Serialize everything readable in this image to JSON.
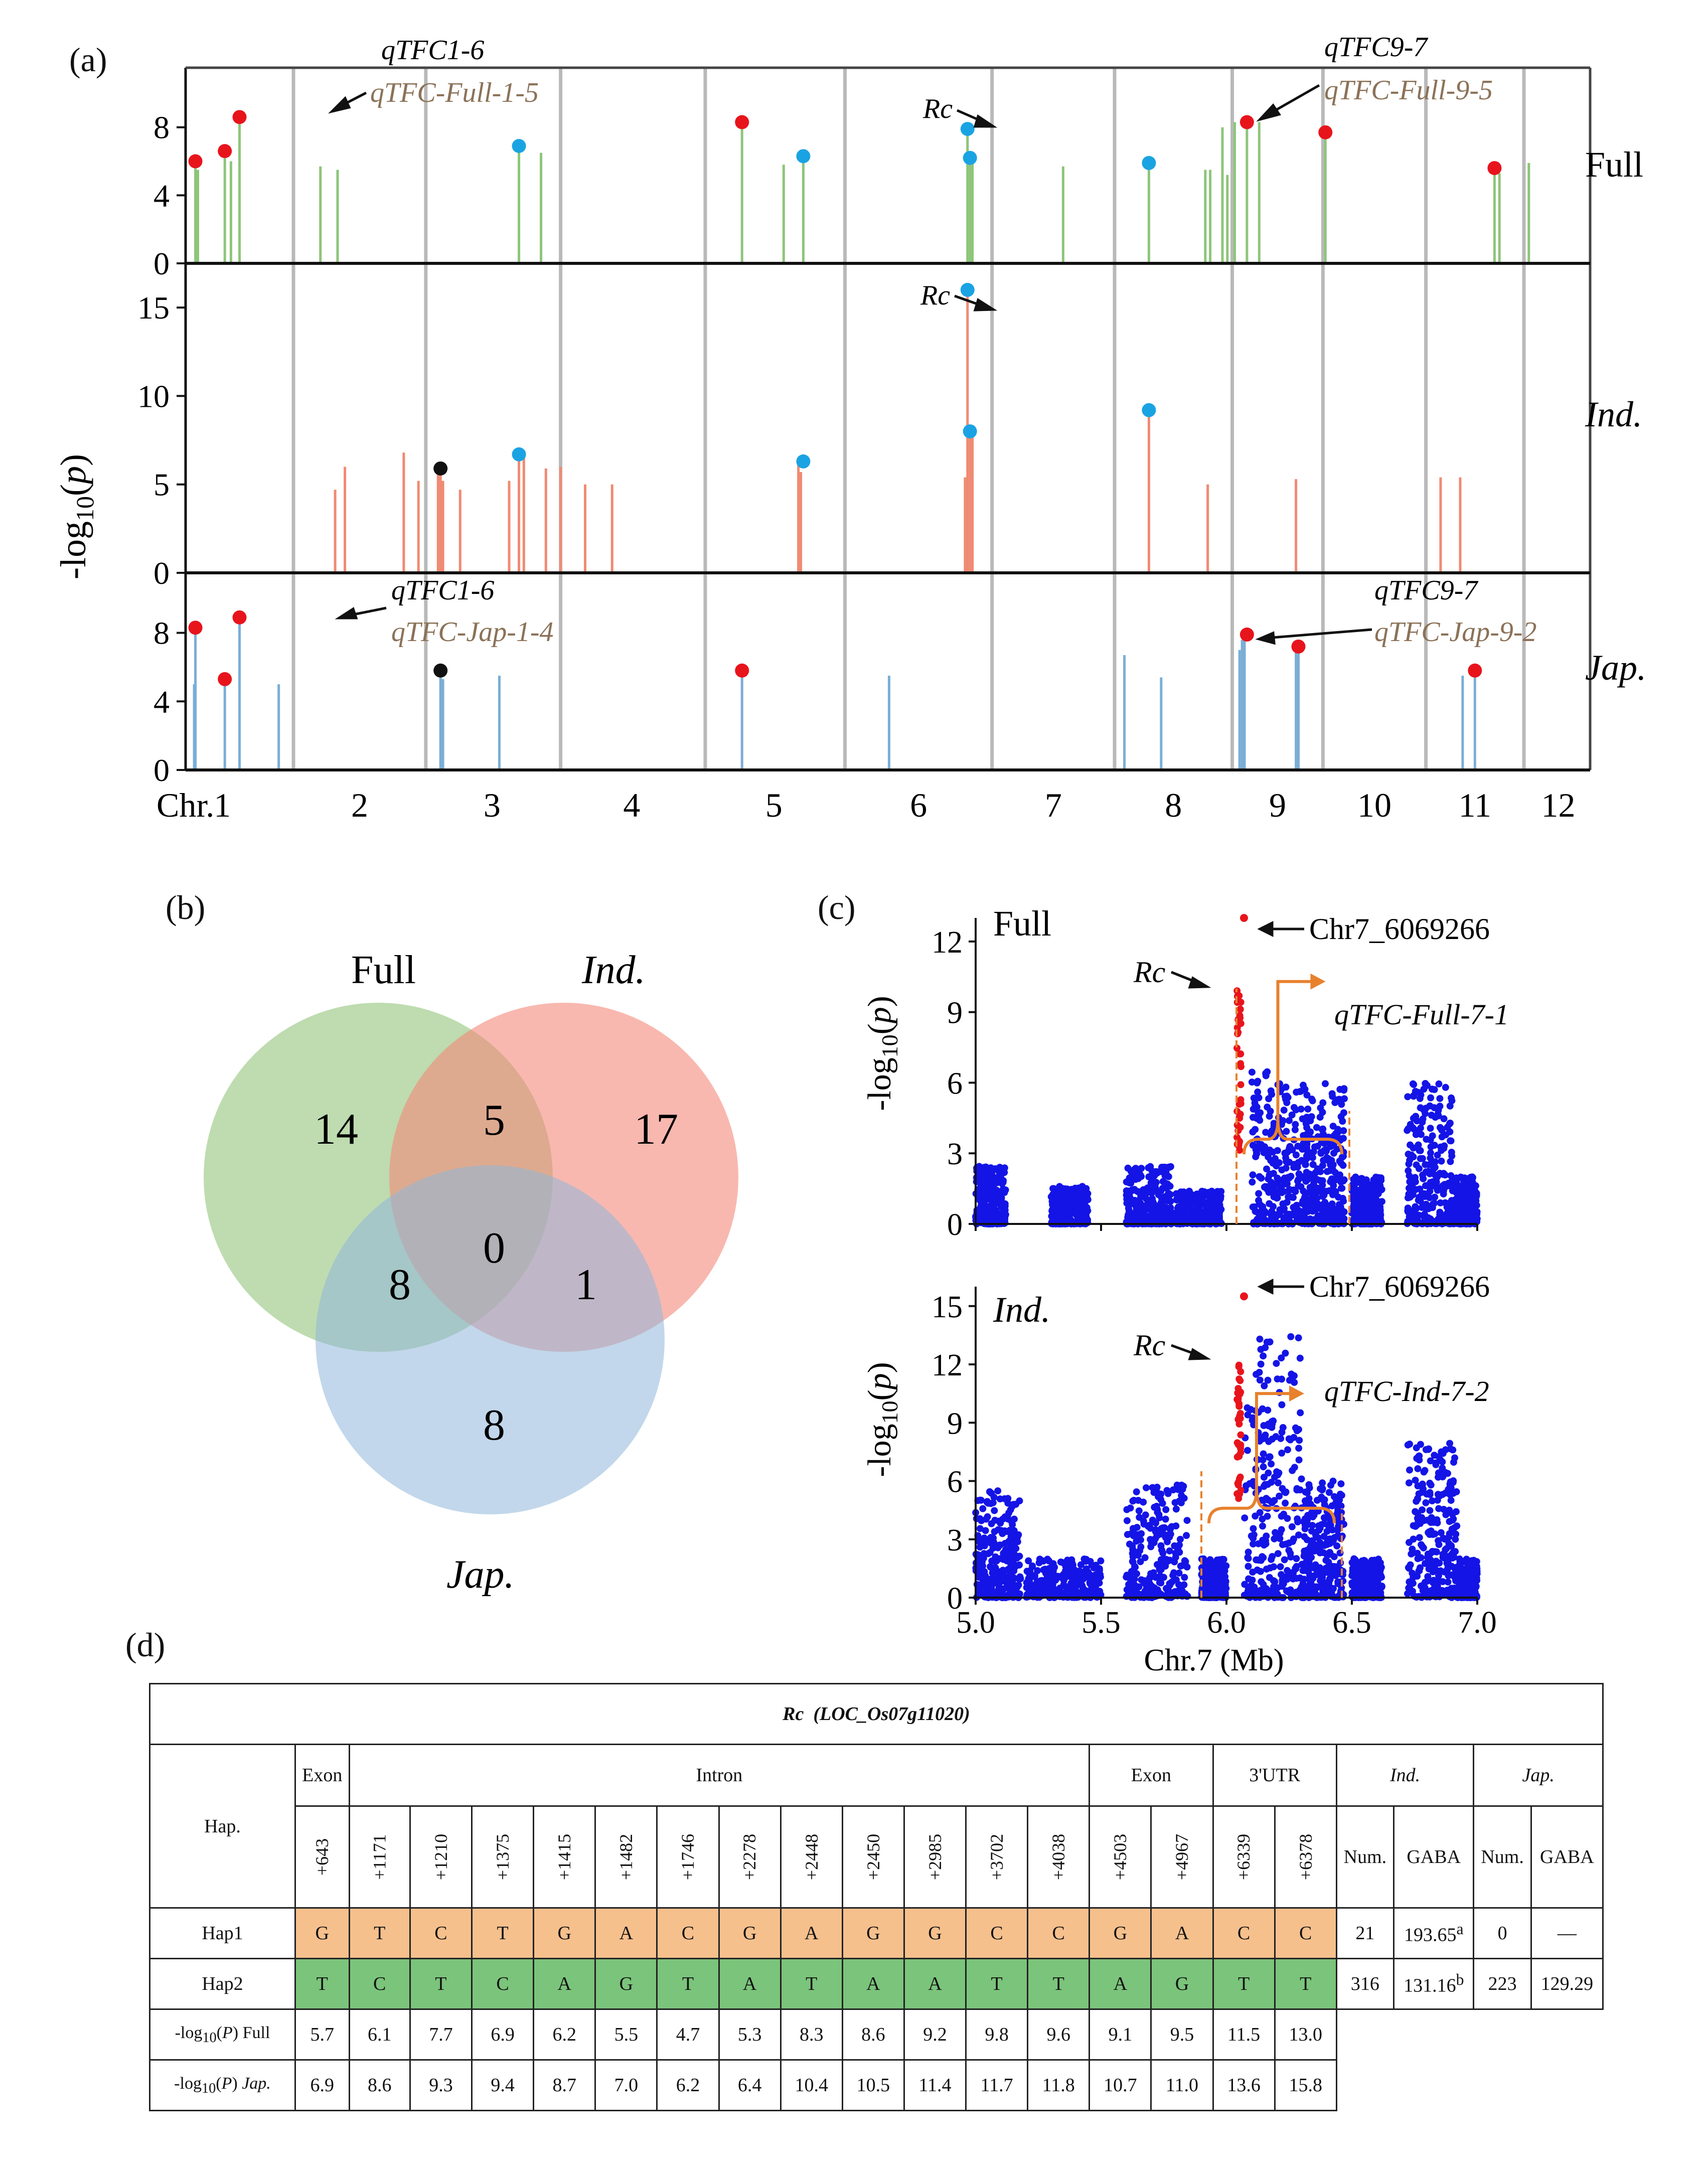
{
  "panel_labels": {
    "a": "(a)",
    "b": "(b)",
    "c": "(c)",
    "d": "(d)"
  },
  "chart_data": [
    {
      "panel": "a",
      "type": "manhattan",
      "ylabel": "-log10(p)",
      "xlabel_prefix": "Chr.",
      "chromosomes": [
        "1",
        "2",
        "3",
        "4",
        "5",
        "6",
        "7",
        "8",
        "9",
        "10",
        "11",
        "12"
      ],
      "colors": {
        "Full": "#8dc57a",
        "Ind.": "#f08a73",
        "Jap.": "#7aaed6",
        "dot_red": "#e8141c",
        "dot_blue": "#1aa3e3",
        "dot_black": "#111111"
      },
      "tracks": [
        {
          "name": "Full",
          "yticks": [
            0,
            4,
            8
          ],
          "ylim": [
            0,
            11.5
          ],
          "stems": [
            [
              0.04,
              6.0
            ],
            [
              0.05,
              5.5
            ],
            [
              0.16,
              6.5
            ],
            [
              0.185,
              6.0
            ],
            [
              0.22,
              8.6
            ],
            [
              0.55,
              5.7
            ],
            [
              0.62,
              5.5
            ],
            [
              1.36,
              6.8
            ],
            [
              1.45,
              6.5
            ],
            [
              2.27,
              8.3
            ],
            [
              2.44,
              5.8
            ],
            [
              2.52,
              6.3
            ],
            [
              3.19,
              7.9
            ],
            [
              3.2,
              6.3
            ],
            [
              3.21,
              6.2
            ],
            [
              3.58,
              5.7
            ],
            [
              3.93,
              5.9
            ],
            [
              4.16,
              5.5
            ],
            [
              4.18,
              5.5
            ],
            [
              4.23,
              8.0
            ],
            [
              4.25,
              5.2
            ],
            [
              4.28,
              8.3
            ],
            [
              4.33,
              8.1
            ],
            [
              4.38,
              8.3
            ],
            [
              4.65,
              7.7
            ],
            [
              5.34,
              5.6
            ],
            [
              5.36,
              5.3
            ],
            [
              5.48,
              5.9
            ]
          ],
          "dots": [
            [
              0.04,
              6.0,
              "red"
            ],
            [
              0.16,
              6.6,
              "red"
            ],
            [
              0.22,
              8.6,
              "red"
            ],
            [
              1.36,
              6.9,
              "blue"
            ],
            [
              2.27,
              8.3,
              "red"
            ],
            [
              2.52,
              6.3,
              "blue"
            ],
            [
              3.19,
              7.9,
              "blue"
            ],
            [
              3.2,
              6.2,
              "blue"
            ],
            [
              3.93,
              5.9,
              "blue"
            ],
            [
              4.33,
              8.3,
              "red"
            ],
            [
              4.65,
              7.7,
              "red"
            ],
            [
              5.34,
              5.6,
              "red"
            ]
          ]
        },
        {
          "name": "Ind.",
          "yticks": [
            0,
            5,
            10,
            15
          ],
          "ylim": [
            0,
            17.5
          ],
          "stems": [
            [
              0.61,
              4.7
            ],
            [
              0.65,
              6.0
            ],
            [
              0.89,
              6.8
            ],
            [
              0.95,
              5.2
            ],
            [
              1.03,
              5.6
            ],
            [
              1.04,
              5.9
            ],
            [
              1.05,
              5.2
            ],
            [
              1.12,
              4.7
            ],
            [
              1.32,
              5.2
            ],
            [
              1.36,
              6.7
            ],
            [
              1.38,
              6.5
            ],
            [
              1.47,
              5.9
            ],
            [
              1.53,
              6.0
            ],
            [
              1.63,
              5.0
            ],
            [
              1.74,
              5.0
            ],
            [
              2.5,
              6.2
            ],
            [
              2.51,
              5.7
            ],
            [
              3.18,
              5.4
            ],
            [
              3.19,
              16.0
            ],
            [
              3.2,
              8.0
            ],
            [
              3.21,
              7.7
            ],
            [
              3.93,
              9.2
            ],
            [
              4.17,
              5.0
            ],
            [
              4.53,
              5.3
            ],
            [
              5.12,
              5.4
            ],
            [
              5.2,
              5.4
            ]
          ],
          "dots": [
            [
              1.04,
              5.9,
              "black"
            ],
            [
              1.36,
              6.7,
              "blue"
            ],
            [
              2.52,
              6.3,
              "blue"
            ],
            [
              3.19,
              16.0,
              "blue"
            ],
            [
              3.2,
              8.0,
              "blue"
            ],
            [
              3.93,
              9.2,
              "blue"
            ]
          ]
        },
        {
          "name": "Jap.",
          "yticks": [
            0,
            4,
            8
          ],
          "ylim": [
            0,
            11.5
          ],
          "stems": [
            [
              0.035,
              5.0
            ],
            [
              0.04,
              8.3
            ],
            [
              0.16,
              5.3
            ],
            [
              0.22,
              8.9
            ],
            [
              0.38,
              5.0
            ],
            [
              1.04,
              5.8
            ],
            [
              1.05,
              5.3
            ],
            [
              1.28,
              5.5
            ],
            [
              2.27,
              5.8
            ],
            [
              2.87,
              5.5
            ],
            [
              3.83,
              6.7
            ],
            [
              3.98,
              5.4
            ],
            [
              4.3,
              7.0
            ],
            [
              4.31,
              7.6
            ],
            [
              4.32,
              7.9
            ],
            [
              4.53,
              7.0
            ],
            [
              4.54,
              7.2
            ],
            [
              5.21,
              5.5
            ],
            [
              5.26,
              5.8
            ]
          ],
          "dots": [
            [
              0.04,
              8.3,
              "red"
            ],
            [
              0.16,
              5.3,
              "red"
            ],
            [
              0.22,
              8.9,
              "red"
            ],
            [
              1.04,
              5.8,
              "black"
            ],
            [
              2.27,
              5.8,
              "red"
            ],
            [
              4.33,
              7.9,
              "red"
            ],
            [
              4.54,
              7.2,
              "red"
            ],
            [
              5.26,
              5.8,
              "red"
            ]
          ]
        }
      ],
      "track_labels": {
        "full": "Full",
        "ind": "Ind.",
        "jap": "Jap."
      },
      "annotations": {
        "full_left_top": "qTFC1-6",
        "full_left_bottom": "qTFC-Full-1-5",
        "full_right_top": "qTFC9-7",
        "full_right_bottom": "qTFC-Full-9-5",
        "full_rc": "Rc",
        "ind_rc": "Rc",
        "jap_left_top": "qTFC1-6",
        "jap_left_bottom": "qTFC-Jap-1-4",
        "jap_right_top": "qTFC9-7",
        "jap_right_bottom": "qTFC-Jap-9-2"
      }
    },
    {
      "panel": "b",
      "type": "venn",
      "sets": [
        "Full",
        "Ind.",
        "Jap."
      ],
      "regions": {
        "full_only": "14",
        "full_ind": "5",
        "ind_only": "17",
        "full_jap": "8",
        "all": "0",
        "ind_jap": "1",
        "jap_only": "8"
      },
      "colors": {
        "Full": "#9bc985",
        "Ind.": "#f4897a",
        "Jap.": "#8fb7da"
      }
    },
    {
      "panel": "c",
      "type": "scatter",
      "xlabel": "Chr.7 (Mb)",
      "xlim": [
        5.0,
        7.0
      ],
      "xticks": [
        "5.0",
        "5.5",
        "6.0",
        "6.5",
        "7.0"
      ],
      "ylabel": "-log10(p)",
      "subplots": [
        {
          "name": "Full",
          "ylim": [
            0,
            13
          ],
          "yticks": [
            "0",
            "3",
            "6",
            "9",
            "12"
          ],
          "peak_snp": "Chr7_6069266",
          "rc_label": "Rc",
          "qtl_label": "qTFC-Full-7-1",
          "qtl_range": [
            6.04,
            6.49
          ]
        },
        {
          "name": "Ind.",
          "ylim": [
            0,
            16
          ],
          "yticks": [
            "0",
            "3",
            "6",
            "9",
            "12",
            "15"
          ],
          "peak_snp": "Chr7_6069266",
          "rc_label": "Rc",
          "qtl_label": "qTFC-Ind-7-2",
          "qtl_range": [
            5.9,
            6.46
          ]
        }
      ]
    }
  ],
  "table": {
    "title": "Rc",
    "title_gene": "(LOC_Os07g11020)",
    "hap_header": "Hap.",
    "groups": {
      "exon1": "Exon",
      "intron": "Intron",
      "exon2": "Exon",
      "utr": "3'UTR",
      "ind": "Ind.",
      "jap": "Jap."
    },
    "positions": [
      "+643",
      "+1171",
      "+1210",
      "+1375",
      "+1415",
      "+1482",
      "+1746",
      "+2278",
      "+2448",
      "+2450",
      "+2985",
      "+3702",
      "+4038",
      "+4503",
      "+4967",
      "+6339",
      "+6378"
    ],
    "stat_headers": {
      "ind_num": "Num.",
      "ind_gaba": "GABA",
      "jap_num": "Num.",
      "jap_gaba": "GABA"
    },
    "hap1": {
      "name": "Hap1",
      "bases": [
        "G",
        "T",
        "C",
        "T",
        "G",
        "A",
        "C",
        "G",
        "A",
        "G",
        "G",
        "C",
        "C",
        "G",
        "A",
        "C",
        "C"
      ],
      "ind_num": "21",
      "ind_gaba": "193.65",
      "ind_sup": "a",
      "jap_num": "0",
      "jap_gaba": "—"
    },
    "hap2": {
      "name": "Hap2",
      "bases": [
        "T",
        "C",
        "T",
        "C",
        "A",
        "G",
        "T",
        "A",
        "T",
        "A",
        "A",
        "T",
        "T",
        "A",
        "G",
        "T",
        "T"
      ],
      "ind_num": "316",
      "ind_gaba": "131.16",
      "ind_sup": "b",
      "jap_num": "223",
      "jap_gaba": "129.29"
    },
    "logp_full_label": "Full",
    "logp_full": [
      "5.7",
      "6.1",
      "7.7",
      "6.9",
      "6.2",
      "5.5",
      "4.7",
      "5.3",
      "8.3",
      "8.6",
      "9.2",
      "9.8",
      "9.6",
      "9.1",
      "9.5",
      "11.5",
      "13.0"
    ],
    "logp_jap_label": "Jap.",
    "logp_jap": [
      "6.9",
      "8.6",
      "9.3",
      "9.4",
      "8.7",
      "7.0",
      "6.2",
      "6.4",
      "10.4",
      "10.5",
      "11.4",
      "11.7",
      "11.8",
      "10.7",
      "11.0",
      "13.6",
      "15.8"
    ]
  }
}
